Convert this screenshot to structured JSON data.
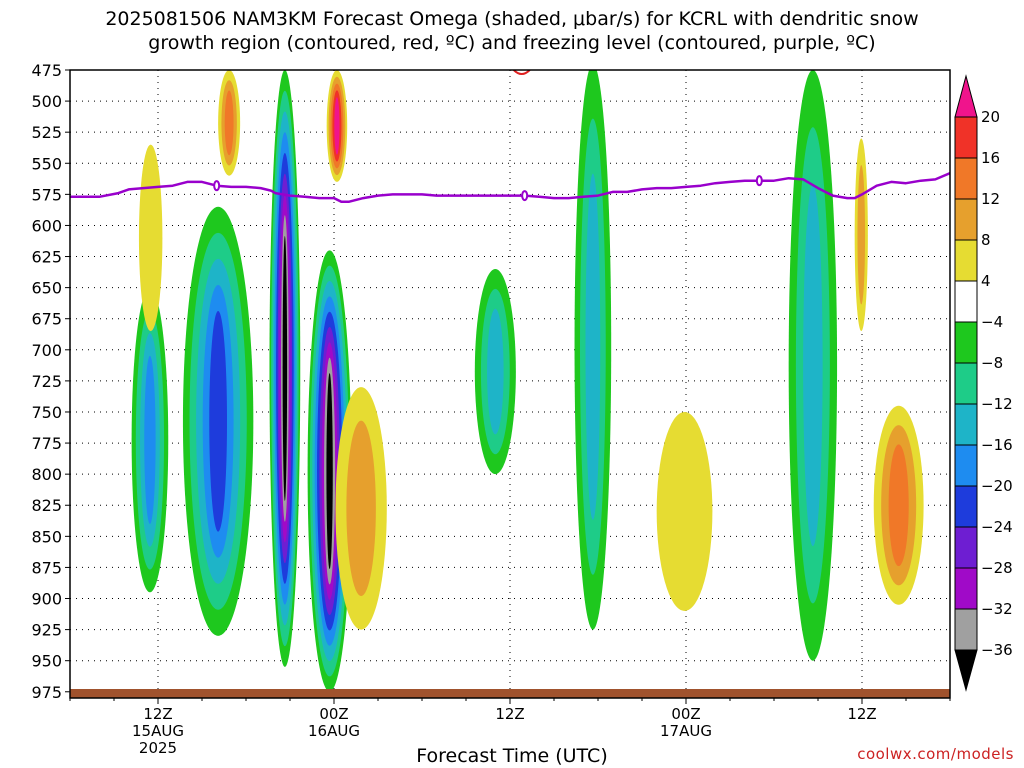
{
  "title_line1": "2025081506 NAM3KM Forecast Omega (shaded, μbar/s) for KCRL with dendritic snow",
  "title_line2": "growth region (contoured, red, ºC) and freezing level (contoured, purple, ºC)",
  "xlabel": "Forecast Time (UTC)",
  "credit": "coolwx.com/models",
  "chart_data": {
    "type": "heatmap",
    "title": "2025081506 NAM3KM Forecast Omega (shaded, μbar/s) for KCRL with dendritic snow growth region (contoured, red, ºC) and freezing level (contoured, purple, ºC)",
    "xlabel": "Forecast Time (UTC)",
    "ylabel": "",
    "y_ticks": [
      475,
      500,
      525,
      550,
      575,
      600,
      625,
      650,
      675,
      700,
      725,
      750,
      775,
      800,
      825,
      850,
      875,
      900,
      925,
      950,
      975
    ],
    "ylim": [
      975,
      475
    ],
    "x_range_hours": [
      6,
      66
    ],
    "x_ticks": [
      {
        "hour": 12,
        "lines": [
          "12Z",
          "15AUG",
          "2025"
        ]
      },
      {
        "hour": 24,
        "lines": [
          "00Z",
          "16AUG"
        ]
      },
      {
        "hour": 36,
        "lines": [
          "12Z"
        ]
      },
      {
        "hour": 48,
        "lines": [
          "00Z",
          "17AUG"
        ]
      },
      {
        "hour": 60,
        "lines": [
          "12Z"
        ]
      }
    ],
    "colorbar": {
      "labels": [
        "20",
        "16",
        "12",
        "8",
        "4",
        "−4",
        "−8",
        "−12",
        "−16",
        "−20",
        "−24",
        "−28",
        "−32",
        "−36"
      ],
      "colors": [
        "#f0148c",
        "#f03228",
        "#f07828",
        "#e6a02d",
        "#e6dc32",
        "#ffffff",
        "#1ec81e",
        "#1ecc88",
        "#1eb4c8",
        "#1e8cf0",
        "#1e3cdc",
        "#6e1ed2",
        "#a00ac8",
        "#a0a0a0",
        "#000000"
      ]
    },
    "freezing_level": {
      "color": "#9900cc",
      "hours": [
        6,
        8,
        9.3,
        10,
        11,
        12,
        13,
        14,
        15,
        16,
        17,
        18,
        19,
        19.7,
        20,
        21,
        22,
        23,
        24,
        24.5,
        25,
        26,
        27,
        28,
        29,
        30,
        31,
        32,
        33,
        34,
        35,
        36,
        37,
        38,
        39,
        40,
        41,
        42,
        43,
        44,
        45,
        46,
        47,
        48,
        49,
        50,
        51,
        52,
        53,
        54,
        55,
        56,
        57,
        58,
        59,
        59.5,
        60,
        61,
        62,
        63,
        64,
        65,
        66
      ],
      "values": [
        577,
        577,
        574,
        571,
        570,
        569,
        568,
        565,
        565,
        568,
        569,
        569,
        570,
        572,
        574,
        576,
        577,
        578,
        578,
        581,
        581,
        578,
        576,
        575,
        575,
        575,
        576,
        576,
        576,
        576,
        576,
        576,
        576,
        577,
        578,
        578,
        577,
        576,
        573,
        573,
        571,
        570,
        570,
        569,
        568,
        566,
        565,
        564,
        564,
        564,
        562,
        563,
        570,
        576,
        578,
        578,
        575,
        568,
        565,
        566,
        564,
        563,
        558
      ],
      "labels": [
        {
          "hour": 16,
          "value": 568
        },
        {
          "hour": 37,
          "value": 576
        },
        {
          "hour": 53,
          "value": 564
        }
      ]
    },
    "dgz_contour": {
      "color": "#e02020",
      "hour": 36.8,
      "pressure": 475
    },
    "terrain": {
      "color": "#a0522d",
      "pressure": 972
    },
    "omega_shaded_regions": [
      {
        "hour_range": [
          10.2,
          12.7
        ],
        "pressure_range": [
          650,
          895
        ],
        "max_magnitude": -16
      },
      {
        "hour_range": [
          13.7,
          18.5
        ],
        "pressure_range": [
          585,
          930
        ],
        "max_magnitude": -20
      },
      {
        "hour_range": [
          19.6,
          21.7
        ],
        "pressure_range": [
          475,
          955
        ],
        "max_magnitude": -36
      },
      {
        "hour_range": [
          22.2,
          25.2
        ],
        "pressure_range": [
          620,
          975
        ],
        "max_magnitude": -36
      },
      {
        "hour_range": [
          33.6,
          36.4
        ],
        "pressure_range": [
          635,
          800
        ],
        "max_magnitude": -12
      },
      {
        "hour_range": [
          40.4,
          42.9
        ],
        "pressure_range": [
          470,
          925
        ],
        "max_magnitude": -12
      },
      {
        "hour_range": [
          55.0,
          58.3
        ],
        "pressure_range": [
          475,
          950
        ],
        "max_magnitude": -12
      },
      {
        "hour_range": [
          10.7,
          12.3
        ],
        "pressure_range": [
          535,
          685
        ],
        "max_magnitude": 4
      },
      {
        "hour_range": [
          16.1,
          17.6
        ],
        "pressure_range": [
          475,
          560
        ],
        "max_magnitude": 12
      },
      {
        "hour_range": [
          23.5,
          24.9
        ],
        "pressure_range": [
          475,
          565
        ],
        "max_magnitude": 20
      },
      {
        "hour_range": [
          24.1,
          27.6
        ],
        "pressure_range": [
          730,
          925
        ],
        "max_magnitude": 8
      },
      {
        "hour_range": [
          46.0,
          49.8
        ],
        "pressure_range": [
          750,
          910
        ],
        "max_magnitude": 4
      },
      {
        "hour_range": [
          60.8,
          64.2
        ],
        "pressure_range": [
          745,
          905
        ],
        "max_magnitude": 12
      },
      {
        "hour_range": [
          59.5,
          60.4
        ],
        "pressure_range": [
          530,
          685
        ],
        "max_magnitude": 8
      }
    ]
  }
}
